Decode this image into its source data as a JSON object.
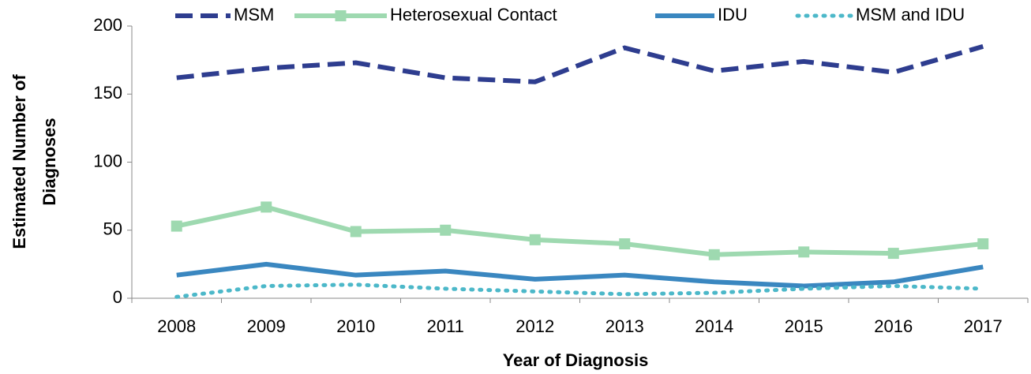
{
  "chart_data": {
    "type": "line",
    "categories": [
      "2008",
      "2009",
      "2010",
      "2011",
      "2012",
      "2013",
      "2014",
      "2015",
      "2016",
      "2017"
    ],
    "series": [
      {
        "name": "MSM",
        "color": "#2e3d8f",
        "dash": "dashed",
        "values": [
          162,
          169,
          173,
          162,
          159,
          184,
          167,
          174,
          166,
          185
        ]
      },
      {
        "name": "Heterosexual Contact",
        "color": "#9ed9b0",
        "marker": "square",
        "values": [
          53,
          67,
          49,
          50,
          43,
          40,
          32,
          34,
          33,
          40
        ]
      },
      {
        "name": "IDU",
        "color": "#3a87c0",
        "values": [
          17,
          25,
          17,
          20,
          14,
          17,
          12,
          9,
          12,
          23
        ]
      },
      {
        "name": "MSM and IDU",
        "color": "#4cb8c9",
        "dash": "dotted",
        "values": [
          1,
          9,
          10,
          7,
          5,
          3,
          4,
          7,
          9,
          7
        ]
      }
    ],
    "ylim": [
      0,
      200
    ],
    "yticks": [
      0,
      50,
      100,
      150,
      200
    ],
    "xlabel": "Year of Diagnosis",
    "ylabel": [
      "Estimated Number of",
      "Diagnoses"
    ],
    "legend": "top"
  }
}
